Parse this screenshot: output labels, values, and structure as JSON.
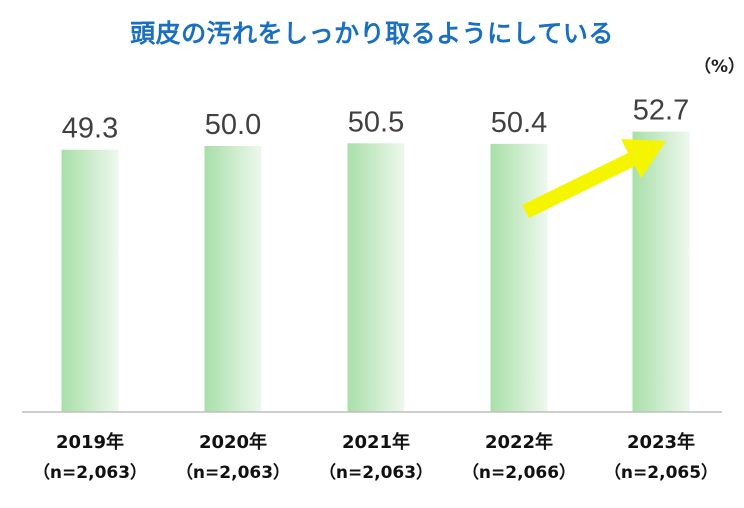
{
  "colors": {
    "bar_start": "#a8dfa8",
    "bar_end": "#eef8ee",
    "title": "#1a6fc0",
    "arrow": "#f5f500",
    "axis": "#bfbfbf"
  },
  "chart_data": {
    "type": "bar",
    "title": "頭皮の汚れをしっかり取るようにしている",
    "unit": "（%）",
    "categories": [
      "2019年",
      "2020年",
      "2021年",
      "2022年",
      "2023年"
    ],
    "sample_sizes": [
      "（n=2,063）",
      "（n=2,063）",
      "（n=2,063）",
      "（n=2,066）",
      "（n=2,065）"
    ],
    "values": [
      49.3,
      50.0,
      50.5,
      50.4,
      52.7
    ],
    "value_labels": [
      "49.3",
      "50.0",
      "50.5",
      "50.4",
      "52.7"
    ],
    "ylim": [
      0,
      55
    ],
    "annotation": "arrow pointing to 2023 bar",
    "grid": false,
    "legend": "none"
  }
}
